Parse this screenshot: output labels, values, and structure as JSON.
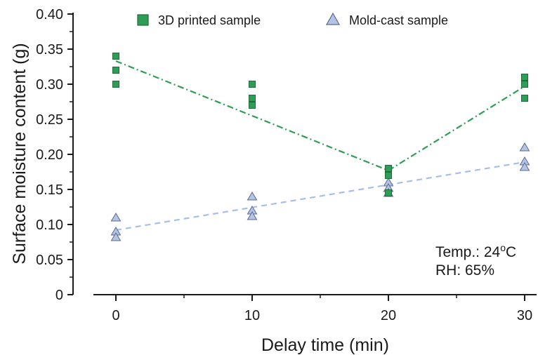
{
  "chart_data": {
    "type": "scatter",
    "xlabel": "Delay time (min)",
    "ylabel": "Surface moisture content (g)",
    "xticks": [
      0,
      10,
      20,
      30
    ],
    "xtick_labels": [
      "0",
      "10",
      "20",
      "30"
    ],
    "yticks": [
      0,
      0.05,
      0.1,
      0.15,
      0.2,
      0.25,
      0.3,
      0.35,
      0.4
    ],
    "ytick_labels": [
      "0",
      "0.05",
      "0.10",
      "0.15",
      "0.20",
      "0.25",
      "0.30",
      "0.35",
      "0.40"
    ],
    "xlim": [
      -2.5,
      31
    ],
    "ylim": [
      0,
      0.4
    ],
    "grid": false,
    "legend_position": "top",
    "series": [
      {
        "name": "3D printed sample",
        "marker": "square",
        "color": "#2e9e57",
        "edge_color": "#1f6b3a",
        "line_color": "#2e9e57",
        "line_style": "dash-dot",
        "points": [
          [
            0,
            0.34
          ],
          [
            0,
            0.32
          ],
          [
            0,
            0.3
          ],
          [
            10,
            0.3
          ],
          [
            10,
            0.28
          ],
          [
            10,
            0.27
          ],
          [
            20,
            0.18
          ],
          [
            20,
            0.17
          ],
          [
            20,
            0.145
          ],
          [
            30,
            0.31
          ],
          [
            30,
            0.3
          ],
          [
            30,
            0.28
          ]
        ],
        "trend": [
          [
            0,
            0.333
          ],
          [
            20,
            0.177
          ],
          [
            30,
            0.297
          ]
        ]
      },
      {
        "name": "Mold-cast sample",
        "marker": "triangle",
        "color": "#b4c4e4",
        "edge_color": "#5a6a8c",
        "line_color": "#a9bde8",
        "line_style": "dashed",
        "points": [
          [
            0,
            0.11
          ],
          [
            0,
            0.09
          ],
          [
            0,
            0.082
          ],
          [
            10,
            0.14
          ],
          [
            10,
            0.12
          ],
          [
            10,
            0.112
          ],
          [
            20,
            0.16
          ],
          [
            20,
            0.152
          ],
          [
            20,
            0.145
          ],
          [
            30,
            0.21
          ],
          [
            30,
            0.19
          ],
          [
            30,
            0.182
          ]
        ],
        "trend": [
          [
            0,
            0.092
          ],
          [
            30,
            0.189
          ]
        ]
      }
    ],
    "annotations": {
      "temp_prefix": "Temp.: 24",
      "temp_sup": "o",
      "temp_suffix": "C",
      "rh": "RH: 65%"
    }
  }
}
